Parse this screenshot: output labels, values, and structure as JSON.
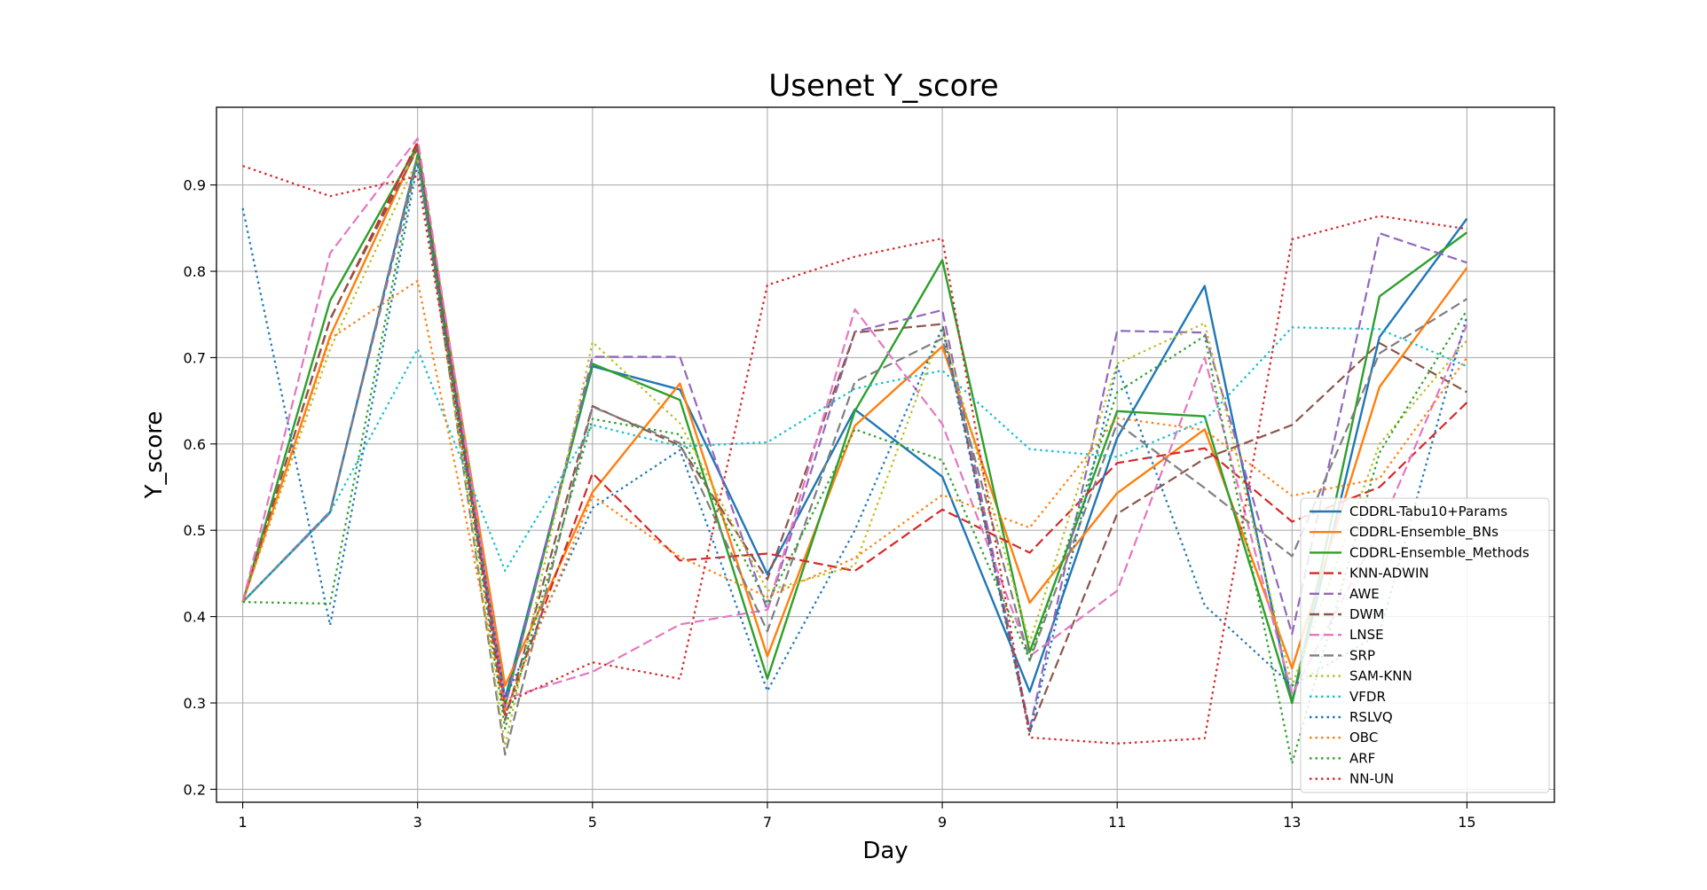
{
  "chart_data": {
    "type": "line",
    "title": "Usenet Y_score",
    "xlabel": "Day",
    "ylabel": "Y_score",
    "xlim": [
      0.7,
      16.0
    ],
    "ylim": [
      0.185,
      0.99
    ],
    "x": [
      1,
      2,
      3,
      4,
      5,
      6,
      7,
      8,
      9,
      10,
      11,
      12,
      13,
      14,
      15
    ],
    "xticks": [
      1,
      3,
      5,
      7,
      9,
      11,
      13,
      15
    ],
    "yticks": [
      0.2,
      0.3,
      0.4,
      0.5,
      0.6,
      0.7,
      0.8,
      0.9
    ],
    "grid": true,
    "legend_position": "lower-right",
    "series": [
      {
        "name": "CDDRL-Tabu10+Params",
        "color": "#1f77b4",
        "style": "solid",
        "values": [
          0.417,
          0.521,
          0.935,
          0.305,
          0.69,
          0.663,
          0.449,
          0.64,
          0.562,
          0.313,
          0.607,
          0.783,
          0.3,
          0.724,
          0.861
        ]
      },
      {
        "name": "CDDRL-Ensemble_BNs",
        "color": "#ff7f0e",
        "style": "solid",
        "values": [
          0.417,
          0.725,
          0.944,
          0.32,
          0.544,
          0.67,
          0.354,
          0.621,
          0.713,
          0.416,
          0.543,
          0.617,
          0.34,
          0.666,
          0.804
        ]
      },
      {
        "name": "CDDRL-Ensemble_Methods",
        "color": "#2ca02c",
        "style": "solid",
        "values": [
          0.417,
          0.766,
          0.946,
          0.297,
          0.693,
          0.651,
          0.328,
          0.638,
          0.813,
          0.359,
          0.638,
          0.632,
          0.3,
          0.771,
          0.845
        ]
      },
      {
        "name": "KNN-ADWIN",
        "color": "#d62728",
        "style": "dashed",
        "values": [
          0.417,
          0.744,
          0.95,
          0.286,
          0.566,
          0.465,
          0.473,
          0.453,
          0.524,
          0.474,
          0.578,
          0.595,
          0.51,
          0.55,
          0.648
        ]
      },
      {
        "name": "AWE",
        "color": "#9467bd",
        "style": "dashed",
        "values": [
          0.417,
          0.522,
          0.928,
          0.295,
          0.701,
          0.701,
          0.407,
          0.73,
          0.755,
          0.27,
          0.731,
          0.729,
          0.38,
          0.844,
          0.81
        ]
      },
      {
        "name": "DWM",
        "color": "#8c564b",
        "style": "dashed",
        "values": [
          0.417,
          0.745,
          0.942,
          0.28,
          0.644,
          0.598,
          0.443,
          0.729,
          0.739,
          0.267,
          0.519,
          0.583,
          0.622,
          0.717,
          0.66
        ]
      },
      {
        "name": "LNSE",
        "color": "#e377c2",
        "style": "dashed",
        "values": [
          0.417,
          0.821,
          0.954,
          0.305,
          0.336,
          0.391,
          0.408,
          0.756,
          0.623,
          0.354,
          0.43,
          0.7,
          0.31,
          0.5,
          0.738
        ]
      },
      {
        "name": "SRP",
        "color": "#7f7f7f",
        "style": "dashed",
        "values": [
          0.417,
          0.52,
          0.935,
          0.24,
          0.643,
          0.601,
          0.383,
          0.672,
          0.722,
          0.349,
          0.624,
          0.549,
          0.47,
          0.705,
          0.768
        ]
      },
      {
        "name": "SAM-KNN",
        "color": "#bcbd22",
        "style": "dotted",
        "values": [
          0.417,
          0.71,
          0.93,
          0.25,
          0.718,
          0.624,
          0.43,
          0.459,
          0.734,
          0.37,
          0.693,
          0.74,
          0.32,
          0.6,
          0.72
        ]
      },
      {
        "name": "VFDR",
        "color": "#17becf",
        "style": "dotted",
        "values": [
          0.417,
          0.521,
          0.71,
          0.453,
          0.622,
          0.597,
          0.602,
          0.664,
          0.685,
          0.594,
          0.585,
          0.627,
          0.735,
          0.733,
          0.69
        ]
      },
      {
        "name": "RSLVQ",
        "color": "#1f77b4",
        "style": "dotted",
        "values": [
          0.873,
          0.39,
          0.925,
          0.305,
          0.526,
          0.593,
          0.314,
          0.5,
          0.735,
          0.265,
          0.69,
          0.413,
          0.32,
          0.38,
          0.748
        ]
      },
      {
        "name": "OBC",
        "color": "#ff7f0e",
        "style": "dotted",
        "values": [
          0.417,
          0.722,
          0.789,
          0.29,
          0.54,
          0.469,
          0.423,
          0.468,
          0.541,
          0.503,
          0.63,
          0.616,
          0.54,
          0.56,
          0.7
        ]
      },
      {
        "name": "ARF",
        "color": "#2ca02c",
        "style": "dotted",
        "values": [
          0.417,
          0.415,
          0.935,
          0.27,
          0.629,
          0.611,
          0.415,
          0.617,
          0.581,
          0.35,
          0.66,
          0.725,
          0.23,
          0.59,
          0.755
        ]
      },
      {
        "name": "NN-UN",
        "color": "#d62728",
        "style": "dotted",
        "values": [
          0.922,
          0.887,
          0.91,
          0.3,
          0.347,
          0.328,
          0.784,
          0.817,
          0.838,
          0.26,
          0.253,
          0.259,
          0.837,
          0.864,
          0.849
        ]
      }
    ]
  }
}
